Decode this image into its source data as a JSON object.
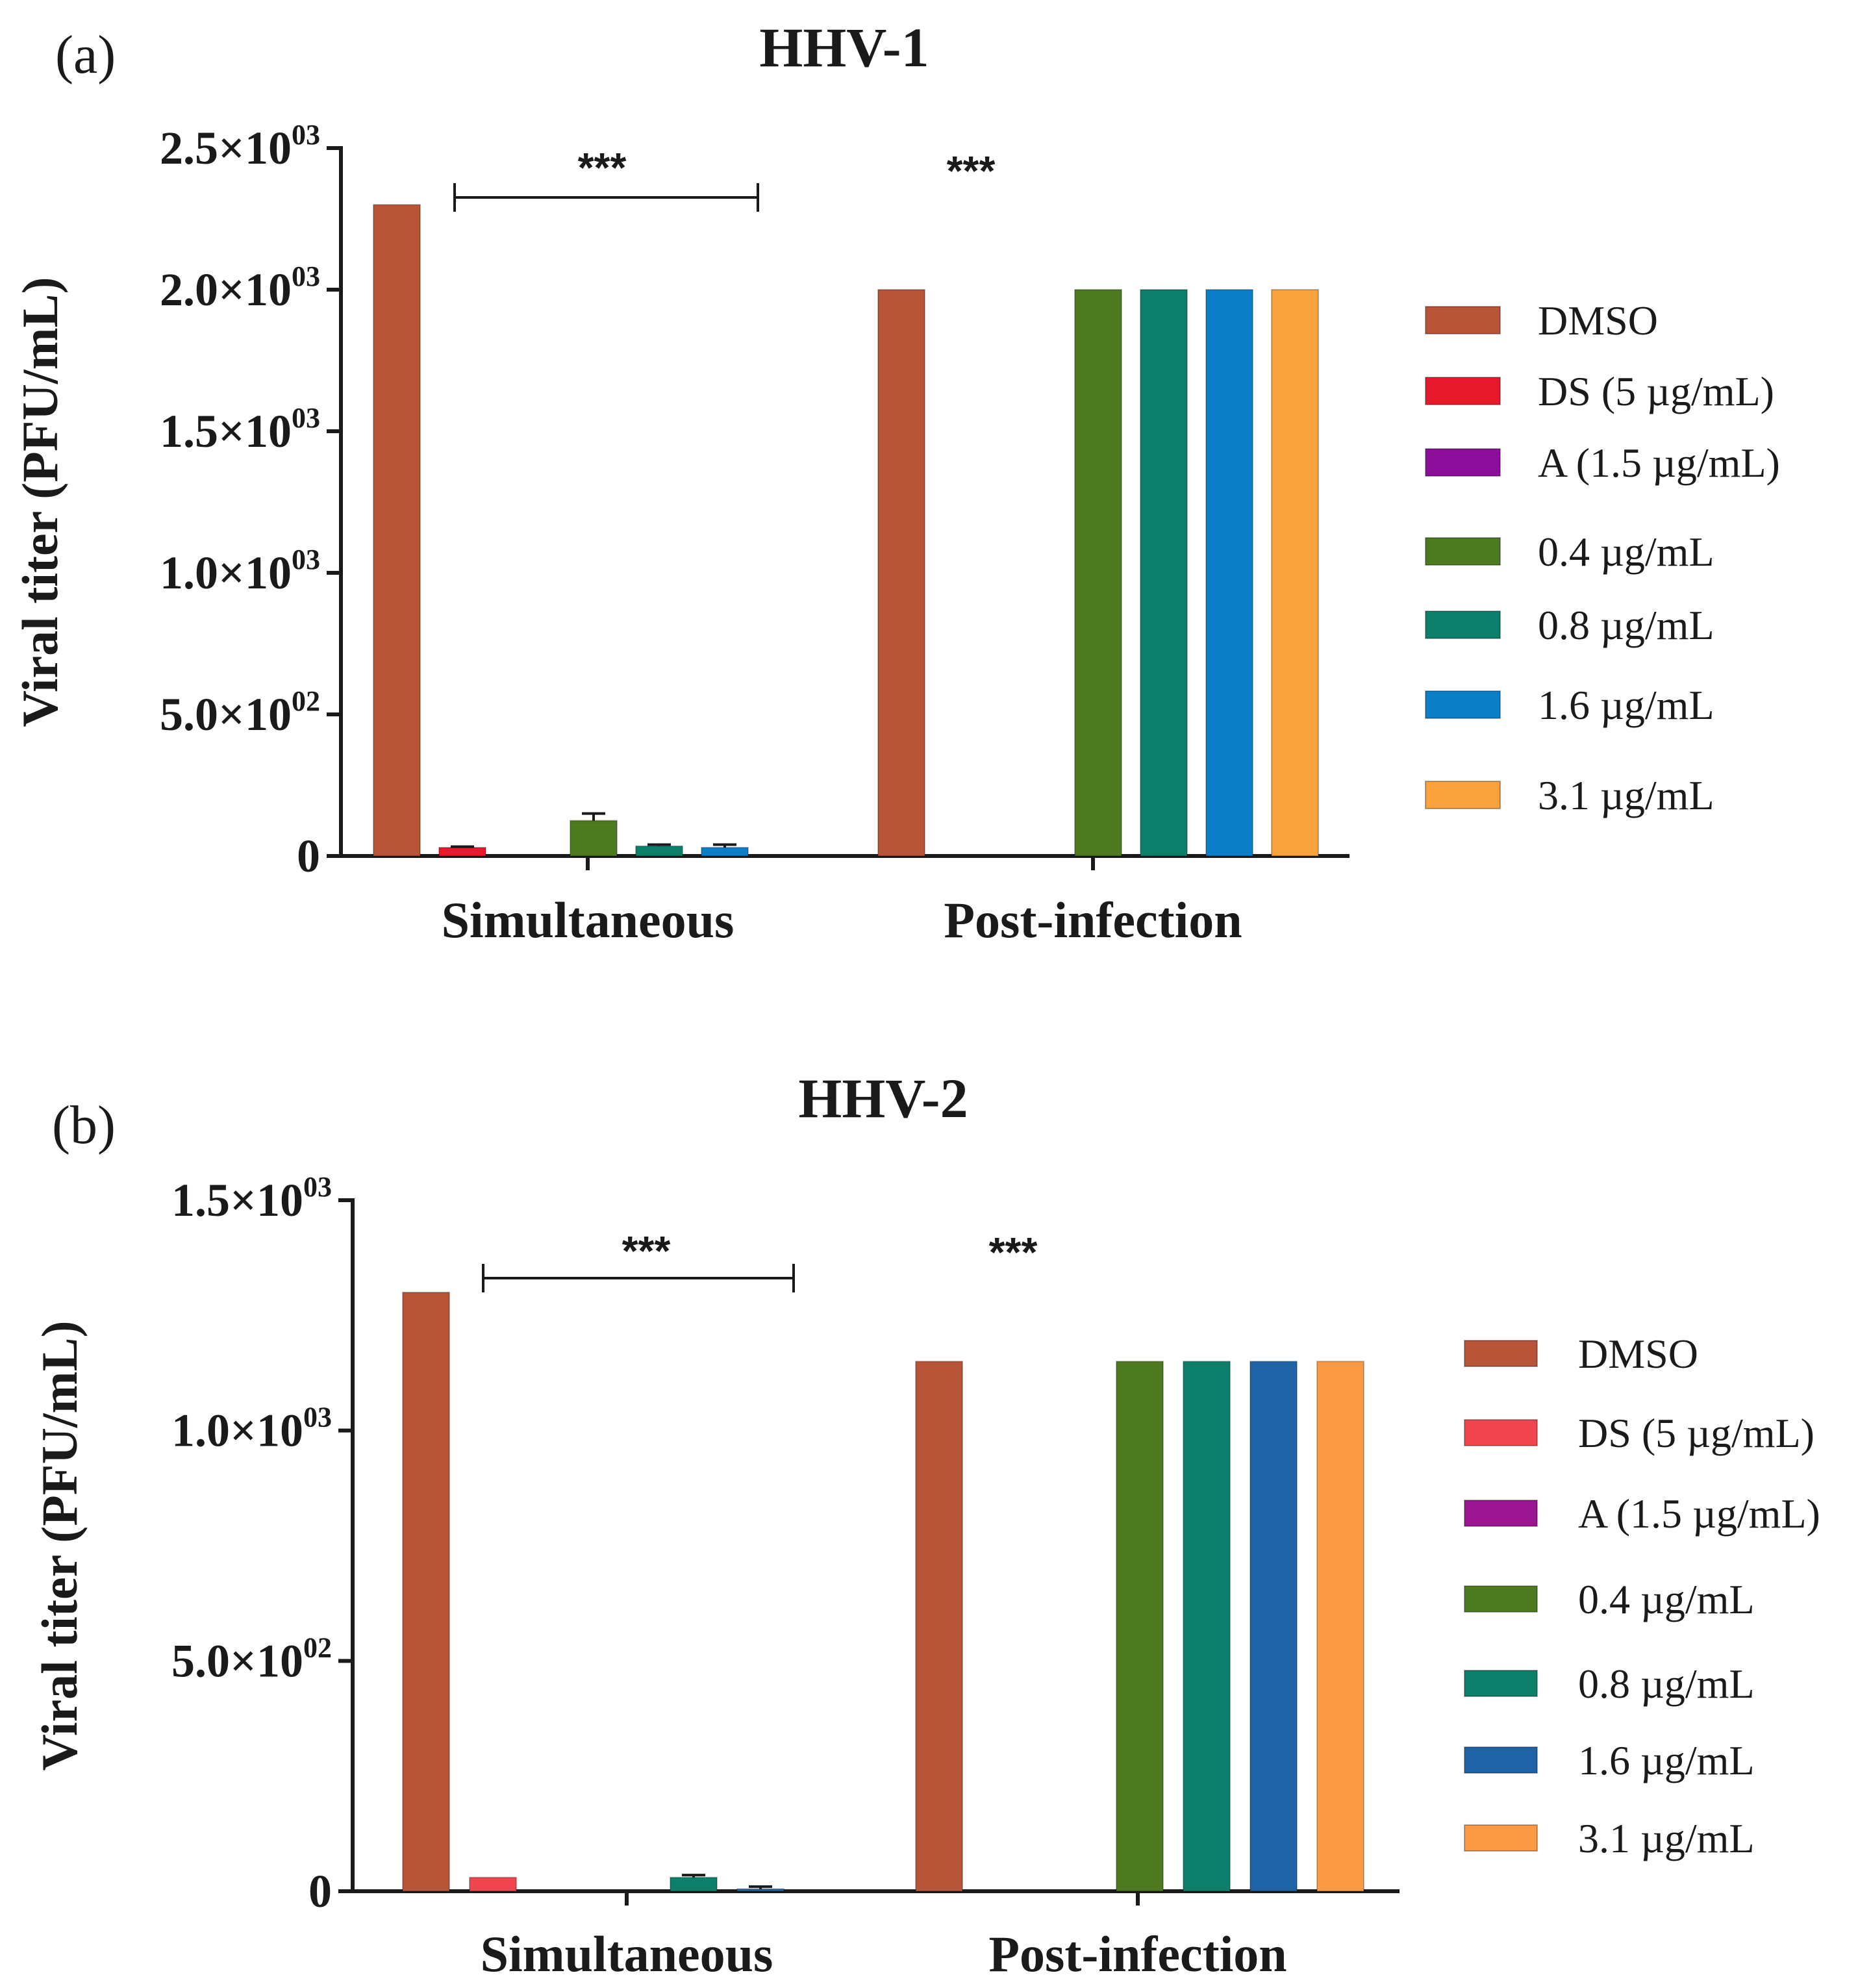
{
  "chart_data": [
    {
      "type": "bar",
      "panel_label": "(a)",
      "title": "HHV-1",
      "ylabel": "Viral titer (PFU/mL)",
      "ylim": [
        0,
        2500
      ],
      "yticks": [
        {
          "value": 0,
          "mant": "0",
          "exp": ""
        },
        {
          "value": 500,
          "mant": "5.0×10",
          "exp": "02"
        },
        {
          "value": 1000,
          "mant": "1.0×10",
          "exp": "03"
        },
        {
          "value": 1500,
          "mant": "1.5×10",
          "exp": "03"
        },
        {
          "value": 2000,
          "mant": "2.0×10",
          "exp": "03"
        },
        {
          "value": 2500,
          "mant": "2.5×10",
          "exp": "03"
        }
      ],
      "categories": [
        "Simultaneous",
        "Post-infection"
      ],
      "series": [
        {
          "name": "DMSO",
          "color": "#b85437",
          "values": [
            2300,
            2000
          ],
          "errors": [
            0,
            0
          ]
        },
        {
          "name": "DS (5 µg/mL)",
          "color": "#e8192c",
          "values": [
            30,
            0
          ],
          "errors": [
            3,
            0
          ]
        },
        {
          "name": "A (1.5 µg/mL)",
          "color": "#8b0f9b",
          "values": [
            0,
            0
          ],
          "errors": [
            0,
            0
          ]
        },
        {
          "name": "0.4 µg/mL",
          "color": "#4d7a1e",
          "values": [
            125,
            2000
          ],
          "errors": [
            25,
            0
          ]
        },
        {
          "name": "0.8 µg/mL",
          "color": "#0c7f6a",
          "values": [
            35,
            2000
          ],
          "errors": [
            5,
            0
          ]
        },
        {
          "name": "1.6 µg/mL",
          "color": "#0a7fc8",
          "values": [
            30,
            2000
          ],
          "errors": [
            10,
            0
          ]
        },
        {
          "name": "3.1 µg/mL",
          "color": "#f9a13a",
          "values": [
            0,
            2000
          ],
          "errors": [
            0,
            0
          ]
        }
      ],
      "annotations": {
        "sim_sig": "***",
        "post_sig": "***"
      }
    },
    {
      "type": "bar",
      "panel_label": "(b)",
      "title": "HHV-2",
      "ylabel": "Viral titer (PFU/mL)",
      "ylim": [
        0,
        1500
      ],
      "yticks": [
        {
          "value": 0,
          "mant": "0",
          "exp": ""
        },
        {
          "value": 500,
          "mant": "5.0×10",
          "exp": "02"
        },
        {
          "value": 1000,
          "mant": "1.0×10",
          "exp": "03"
        },
        {
          "value": 1500,
          "mant": "1.5×10",
          "exp": "03"
        }
      ],
      "categories": [
        "Simultaneous",
        "Post-infection"
      ],
      "series": [
        {
          "name": "DMSO",
          "color": "#b85437",
          "values": [
            1300,
            1150
          ],
          "errors": [
            0,
            0
          ]
        },
        {
          "name": "DS (5 µg/mL)",
          "color": "#f0454f",
          "values": [
            30,
            0
          ],
          "errors": [
            0,
            0
          ]
        },
        {
          "name": "A (1.5 µg/mL)",
          "color": "#9b1490",
          "values": [
            0,
            0
          ],
          "errors": [
            0,
            0
          ]
        },
        {
          "name": "0.4 µg/mL",
          "color": "#4d7a1e",
          "values": [
            0,
            1150
          ],
          "errors": [
            0,
            0
          ]
        },
        {
          "name": "0.8 µg/mL",
          "color": "#0c7f6a",
          "values": [
            30,
            1150
          ],
          "errors": [
            5,
            0
          ]
        },
        {
          "name": "1.6  µg/mL",
          "color": "#1d63a6",
          "values": [
            5,
            1150
          ],
          "errors": [
            5,
            0
          ]
        },
        {
          "name": "3.1 µg/mL",
          "color": "#fb9a42",
          "values": [
            0,
            1150
          ],
          "errors": [
            0,
            0
          ]
        }
      ],
      "annotations": {
        "sim_sig": "***",
        "post_sig": "***"
      }
    }
  ]
}
